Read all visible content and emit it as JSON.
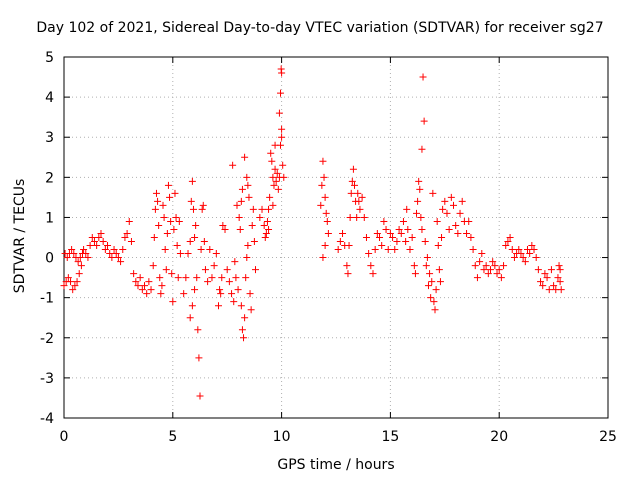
{
  "chart_data": {
    "type": "scatter",
    "title": "Day 102 of 2021, Sidereal Day-to-day VTEC variation (SDTVAR) for receiver sg27",
    "xlabel": "GPS time / hours",
    "ylabel": "SDTVAR / TECUs",
    "xlim": [
      0,
      25
    ],
    "ylim": [
      -4,
      5
    ],
    "xticks": [
      "0",
      "5",
      "10",
      "15",
      "20",
      "25"
    ],
    "yticks": [
      "-4",
      "-3",
      "-2",
      "-1",
      "0",
      "1",
      "2",
      "3",
      "4",
      "5"
    ],
    "grid": true,
    "marker": "+",
    "color": "#ff0000",
    "series": [
      {
        "name": "sg27",
        "points": [
          [
            0.0,
            -0.7
          ],
          [
            0.1,
            -0.6
          ],
          [
            0.2,
            -0.5
          ],
          [
            0.3,
            -0.6
          ],
          [
            0.4,
            -0.8
          ],
          [
            0.5,
            -0.7
          ],
          [
            0.6,
            -0.6
          ],
          [
            0.7,
            -0.4
          ],
          [
            0.8,
            -0.2
          ],
          [
            0.05,
            0.1
          ],
          [
            0.15,
            0.0
          ],
          [
            0.25,
            0.1
          ],
          [
            0.35,
            0.2
          ],
          [
            0.45,
            0.1
          ],
          [
            0.55,
            0.0
          ],
          [
            0.65,
            -0.1
          ],
          [
            0.75,
            0.0
          ],
          [
            0.85,
            0.1
          ],
          [
            0.9,
            0.2
          ],
          [
            1.0,
            0.1
          ],
          [
            1.1,
            0.0
          ],
          [
            1.2,
            0.3
          ],
          [
            1.3,
            0.5
          ],
          [
            1.4,
            0.4
          ],
          [
            1.5,
            0.3
          ],
          [
            1.6,
            0.5
          ],
          [
            1.7,
            0.6
          ],
          [
            1.8,
            0.4
          ],
          [
            1.9,
            0.2
          ],
          [
            2.0,
            0.3
          ],
          [
            2.1,
            0.1
          ],
          [
            2.2,
            0.0
          ],
          [
            2.3,
            0.2
          ],
          [
            2.4,
            0.1
          ],
          [
            2.5,
            0.0
          ],
          [
            2.6,
            -0.1
          ],
          [
            2.7,
            0.2
          ],
          [
            2.8,
            0.5
          ],
          [
            2.9,
            0.6
          ],
          [
            3.0,
            0.9
          ],
          [
            3.1,
            0.4
          ],
          [
            3.2,
            -0.4
          ],
          [
            3.3,
            -0.6
          ],
          [
            3.4,
            -0.7
          ],
          [
            3.5,
            -0.5
          ],
          [
            3.6,
            -0.8
          ],
          [
            3.7,
            -0.7
          ],
          [
            3.8,
            -0.9
          ],
          [
            3.9,
            -0.6
          ],
          [
            4.0,
            -0.8
          ],
          [
            4.1,
            -0.2
          ],
          [
            4.15,
            0.5
          ],
          [
            4.2,
            1.2
          ],
          [
            4.25,
            1.6
          ],
          [
            4.3,
            1.4
          ],
          [
            4.35,
            0.8
          ],
          [
            4.4,
            -0.5
          ],
          [
            4.45,
            -0.9
          ],
          [
            4.5,
            -0.7
          ],
          [
            4.55,
            1.3
          ],
          [
            4.6,
            1.0
          ],
          [
            4.65,
            0.2
          ],
          [
            4.7,
            -0.3
          ],
          [
            4.75,
            0.6
          ],
          [
            4.8,
            1.8
          ],
          [
            4.85,
            1.5
          ],
          [
            4.9,
            0.9
          ],
          [
            4.95,
            -0.4
          ],
          [
            5.0,
            -1.1
          ],
          [
            5.05,
            0.7
          ],
          [
            5.1,
            1.6
          ],
          [
            5.15,
            1.0
          ],
          [
            5.2,
            0.3
          ],
          [
            5.25,
            -0.5
          ],
          [
            5.3,
            0.9
          ],
          [
            5.35,
            0.1
          ],
          [
            5.5,
            -0.9
          ],
          [
            5.6,
            -0.5
          ],
          [
            5.7,
            0.1
          ],
          [
            5.8,
            0.4
          ],
          [
            5.85,
            1.4
          ],
          [
            5.9,
            1.9
          ],
          [
            5.95,
            1.2
          ],
          [
            6.0,
            0.5
          ],
          [
            5.8,
            -1.5
          ],
          [
            5.9,
            -1.2
          ],
          [
            6.0,
            -0.8
          ],
          [
            6.05,
            0.8
          ],
          [
            6.1,
            -0.5
          ],
          [
            6.15,
            -1.8
          ],
          [
            6.2,
            -2.5
          ],
          [
            6.25,
            -3.45
          ],
          [
            6.3,
            0.2
          ],
          [
            6.35,
            1.2
          ],
          [
            6.4,
            1.3
          ],
          [
            6.45,
            0.4
          ],
          [
            6.5,
            -0.3
          ],
          [
            6.6,
            -0.6
          ],
          [
            6.7,
            0.2
          ],
          [
            6.8,
            -0.5
          ],
          [
            6.9,
            -0.2
          ],
          [
            7.0,
            0.1
          ],
          [
            7.1,
            -1.2
          ],
          [
            7.15,
            -0.8
          ],
          [
            7.2,
            -0.9
          ],
          [
            7.25,
            -0.5
          ],
          [
            7.3,
            0.8
          ],
          [
            7.4,
            0.7
          ],
          [
            7.5,
            -0.3
          ],
          [
            7.6,
            -0.6
          ],
          [
            7.7,
            -0.9
          ],
          [
            7.8,
            -1.1
          ],
          [
            7.75,
            2.3
          ],
          [
            7.85,
            -0.1
          ],
          [
            7.9,
            -0.5
          ],
          [
            7.95,
            1.3
          ],
          [
            8.0,
            -0.8
          ],
          [
            8.05,
            1.0
          ],
          [
            8.1,
            0.7
          ],
          [
            8.15,
            -1.2
          ],
          [
            8.2,
            -1.8
          ],
          [
            8.25,
            -2.0
          ],
          [
            8.3,
            -1.5
          ],
          [
            8.35,
            -0.5
          ],
          [
            8.4,
            0.0
          ],
          [
            8.45,
            0.3
          ],
          [
            8.5,
            1.5
          ],
          [
            8.55,
            -0.9
          ],
          [
            8.6,
            -1.3
          ],
          [
            8.65,
            0.8
          ],
          [
            8.7,
            1.2
          ],
          [
            8.75,
            0.4
          ],
          [
            8.8,
            -0.3
          ],
          [
            8.3,
            2.5
          ],
          [
            8.4,
            2.0
          ],
          [
            8.45,
            1.8
          ],
          [
            8.2,
            1.7
          ],
          [
            8.15,
            1.4
          ],
          [
            9.0,
            1.0
          ],
          [
            9.1,
            1.2
          ],
          [
            9.2,
            0.8
          ],
          [
            9.25,
            0.5
          ],
          [
            9.3,
            0.6
          ],
          [
            9.35,
            0.9
          ],
          [
            9.4,
            1.2
          ],
          [
            9.45,
            1.5
          ],
          [
            9.5,
            2.6
          ],
          [
            9.55,
            2.4
          ],
          [
            9.6,
            2.0
          ],
          [
            9.65,
            1.8
          ],
          [
            9.7,
            2.2
          ],
          [
            9.75,
            1.9
          ],
          [
            9.8,
            2.1
          ],
          [
            9.85,
            1.7
          ],
          [
            9.9,
            2.0
          ],
          [
            9.95,
            2.8
          ],
          [
            10.0,
            3.2
          ],
          [
            9.9,
            3.6
          ],
          [
            9.95,
            4.1
          ],
          [
            10.0,
            4.6
          ],
          [
            9.98,
            4.7
          ],
          [
            10.0,
            3.0
          ],
          [
            10.05,
            2.3
          ],
          [
            10.1,
            2.0
          ],
          [
            9.7,
            2.8
          ],
          [
            9.6,
            1.3
          ],
          [
            9.4,
            0.7
          ],
          [
            11.8,
            1.3
          ],
          [
            11.85,
            1.8
          ],
          [
            11.9,
            2.4
          ],
          [
            11.95,
            2.0
          ],
          [
            12.0,
            1.5
          ],
          [
            12.05,
            1.1
          ],
          [
            12.1,
            0.9
          ],
          [
            12.15,
            0.6
          ],
          [
            12.0,
            0.3
          ],
          [
            11.9,
            0.0
          ],
          [
            12.6,
            0.2
          ],
          [
            12.7,
            0.4
          ],
          [
            12.8,
            0.6
          ],
          [
            12.9,
            0.3
          ],
          [
            13.0,
            -0.2
          ],
          [
            13.05,
            -0.4
          ],
          [
            13.1,
            0.3
          ],
          [
            13.15,
            1.0
          ],
          [
            13.2,
            1.6
          ],
          [
            13.25,
            1.9
          ],
          [
            13.3,
            2.2
          ],
          [
            13.35,
            1.8
          ],
          [
            13.4,
            1.4
          ],
          [
            13.45,
            1.0
          ],
          [
            13.5,
            1.6
          ],
          [
            13.55,
            1.4
          ],
          [
            13.6,
            1.2
          ],
          [
            13.7,
            1.5
          ],
          [
            13.8,
            1.0
          ],
          [
            13.9,
            0.5
          ],
          [
            14.0,
            0.1
          ],
          [
            14.1,
            -0.2
          ],
          [
            14.2,
            -0.4
          ],
          [
            14.3,
            0.2
          ],
          [
            14.4,
            0.6
          ],
          [
            14.5,
            0.5
          ],
          [
            14.6,
            0.3
          ],
          [
            14.7,
            0.9
          ],
          [
            14.8,
            0.7
          ],
          [
            14.9,
            0.2
          ],
          [
            15.0,
            0.6
          ],
          [
            15.1,
            0.5
          ],
          [
            15.2,
            0.2
          ],
          [
            15.3,
            0.4
          ],
          [
            15.4,
            0.7
          ],
          [
            15.5,
            0.6
          ],
          [
            15.6,
            0.9
          ],
          [
            15.7,
            0.4
          ],
          [
            15.75,
            1.2
          ],
          [
            15.8,
            0.7
          ],
          [
            15.9,
            0.2
          ],
          [
            16.0,
            0.5
          ],
          [
            16.1,
            -0.2
          ],
          [
            16.15,
            -0.4
          ],
          [
            16.2,
            1.1
          ],
          [
            16.25,
            1.4
          ],
          [
            16.3,
            1.9
          ],
          [
            16.35,
            1.7
          ],
          [
            16.4,
            1.0
          ],
          [
            16.45,
            0.7
          ],
          [
            16.5,
            4.5
          ],
          [
            16.55,
            3.4
          ],
          [
            16.45,
            2.7
          ],
          [
            16.6,
            0.4
          ],
          [
            16.65,
            -0.2
          ],
          [
            16.7,
            0.0
          ],
          [
            16.75,
            -0.7
          ],
          [
            16.8,
            -0.4
          ],
          [
            16.85,
            -1.0
          ],
          [
            16.9,
            -0.6
          ],
          [
            16.95,
            1.6
          ],
          [
            17.0,
            -1.1
          ],
          [
            17.05,
            -1.3
          ],
          [
            17.1,
            -0.8
          ],
          [
            17.15,
            0.9
          ],
          [
            17.2,
            0.3
          ],
          [
            17.25,
            -0.3
          ],
          [
            17.3,
            -0.6
          ],
          [
            17.35,
            0.5
          ],
          [
            17.4,
            1.2
          ],
          [
            17.5,
            1.4
          ],
          [
            17.6,
            1.1
          ],
          [
            17.7,
            0.7
          ],
          [
            17.8,
            1.5
          ],
          [
            17.9,
            1.3
          ],
          [
            18.0,
            0.8
          ],
          [
            18.1,
            0.6
          ],
          [
            18.2,
            1.1
          ],
          [
            18.3,
            1.4
          ],
          [
            18.4,
            0.9
          ],
          [
            18.5,
            0.6
          ],
          [
            18.6,
            0.9
          ],
          [
            18.7,
            0.5
          ],
          [
            18.8,
            0.2
          ],
          [
            18.9,
            -0.2
          ],
          [
            19.0,
            -0.5
          ],
          [
            19.1,
            -0.1
          ],
          [
            19.2,
            0.1
          ],
          [
            19.3,
            -0.3
          ],
          [
            19.4,
            -0.2
          ],
          [
            19.5,
            -0.4
          ],
          [
            19.6,
            -0.3
          ],
          [
            19.7,
            -0.1
          ],
          [
            19.8,
            -0.2
          ],
          [
            19.9,
            -0.4
          ],
          [
            20.0,
            -0.3
          ],
          [
            20.1,
            -0.5
          ],
          [
            20.2,
            -0.2
          ],
          [
            20.3,
            0.3
          ],
          [
            20.4,
            0.4
          ],
          [
            20.5,
            0.5
          ],
          [
            20.6,
            0.2
          ],
          [
            20.7,
            0.0
          ],
          [
            20.8,
            0.1
          ],
          [
            20.9,
            0.2
          ],
          [
            21.0,
            0.1
          ],
          [
            21.1,
            0.0
          ],
          [
            21.2,
            -0.1
          ],
          [
            21.3,
            0.2
          ],
          [
            21.4,
            0.1
          ],
          [
            21.5,
            0.3
          ],
          [
            21.6,
            0.2
          ],
          [
            21.7,
            0.0
          ],
          [
            21.8,
            -0.3
          ],
          [
            21.9,
            -0.6
          ],
          [
            22.0,
            -0.7
          ],
          [
            22.1,
            -0.4
          ],
          [
            22.2,
            -0.5
          ],
          [
            22.3,
            -0.8
          ],
          [
            22.4,
            -0.3
          ],
          [
            22.5,
            -0.7
          ],
          [
            22.6,
            -0.8
          ],
          [
            22.7,
            -0.5
          ],
          [
            22.75,
            -0.2
          ],
          [
            22.8,
            -0.6
          ],
          [
            22.85,
            -0.8
          ],
          [
            22.8,
            -0.3
          ]
        ]
      }
    ]
  }
}
